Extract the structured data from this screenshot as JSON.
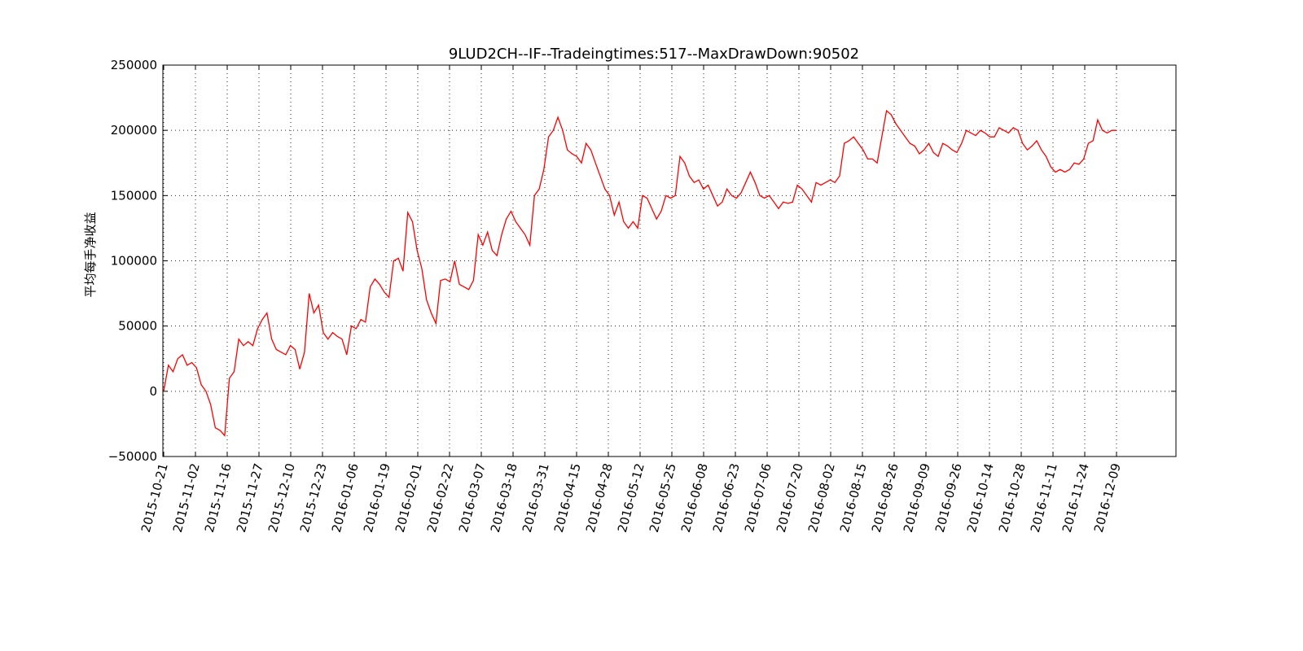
{
  "chart_data": {
    "type": "line",
    "title": "9LUD2CH--IF--Tradeingtimes:517--MaxDrawDown:90502",
    "ylabel": "平均每手净收益",
    "xlabel": "",
    "ylim": [
      -50000,
      250000
    ],
    "yticks": [
      "250000",
      "200000",
      "150000",
      "100000",
      "50000",
      "0",
      "−50000"
    ],
    "grid": true,
    "line_color": "#ff0000",
    "x_labels": [
      "2015-10-21",
      "2015-11-02",
      "2015-11-16",
      "2015-11-27",
      "2015-12-10",
      "2015-12-23",
      "2016-01-06",
      "2016-01-19",
      "2016-02-01",
      "2016-02-22",
      "2016-03-07",
      "2016-03-18",
      "2016-03-31",
      "2016-04-15",
      "2016-04-28",
      "2016-05-12",
      "2016-05-25",
      "2016-06-08",
      "2016-06-23",
      "2016-07-06",
      "2016-07-20",
      "2016-08-02",
      "2016-08-15",
      "2016-08-26",
      "2016-09-09",
      "2016-09-26",
      "2016-10-14",
      "2016-10-28",
      "2016-11-11",
      "2016-11-24",
      "2016-12-09"
    ],
    "series": [
      {
        "values": [
          0,
          20000,
          15000,
          25000,
          28000,
          20000,
          22000,
          18000,
          5000,
          0,
          -10000,
          -28000,
          -30000,
          -34000,
          10000,
          15000,
          40000,
          35000,
          38000,
          35000,
          48000,
          55000,
          60000,
          40000,
          32000,
          30000,
          28000,
          35000,
          32000,
          17000,
          30000,
          75000,
          60000,
          66000,
          45000,
          40000,
          45000,
          42000,
          40000,
          28000,
          50000,
          48000,
          55000,
          53000,
          80000,
          86000,
          82000,
          76000,
          72000,
          100000,
          102000,
          92000,
          137000,
          130000,
          108000,
          94000,
          70000,
          60000,
          52000,
          85000,
          86000,
          84000,
          100000,
          82000,
          80000,
          78000,
          85000,
          120000,
          112000,
          122000,
          108000,
          104000,
          120000,
          132000,
          138000,
          130000,
          125000,
          120000,
          112000,
          150000,
          155000,
          170000,
          195000,
          200000,
          210000,
          200000,
          185000,
          182000,
          180000,
          175000,
          190000,
          185000,
          175000,
          165000,
          155000,
          150000,
          135000,
          145000,
          130000,
          125000,
          130000,
          125000,
          150000,
          148000,
          140000,
          132000,
          138000,
          150000,
          148000,
          150000,
          180000,
          175000,
          165000,
          160000,
          162000,
          155000,
          158000,
          150000,
          142000,
          145000,
          155000,
          150000,
          148000,
          152000,
          160000,
          168000,
          160000,
          150000,
          148000,
          150000,
          145000,
          140000,
          145000,
          144000,
          145000,
          158000,
          155000,
          150000,
          145000,
          160000,
          158000,
          160000,
          162000,
          160000,
          165000,
          190000,
          192000,
          195000,
          190000,
          185000,
          178000,
          178000,
          175000,
          195000,
          215000,
          212000,
          205000,
          200000,
          195000,
          190000,
          188000,
          182000,
          185000,
          190000,
          183000,
          180000,
          190000,
          188000,
          185000,
          183000,
          190000,
          200000,
          198000,
          196000,
          200000,
          198000,
          195000,
          195000,
          202000,
          200000,
          198000,
          202000,
          200000,
          190000,
          185000,
          188000,
          192000,
          185000,
          180000,
          172000,
          168000,
          170000,
          168000,
          170000,
          175000,
          174000,
          178000,
          190000,
          192000,
          208000,
          200000,
          198000,
          200000,
          200000
        ]
      }
    ]
  }
}
